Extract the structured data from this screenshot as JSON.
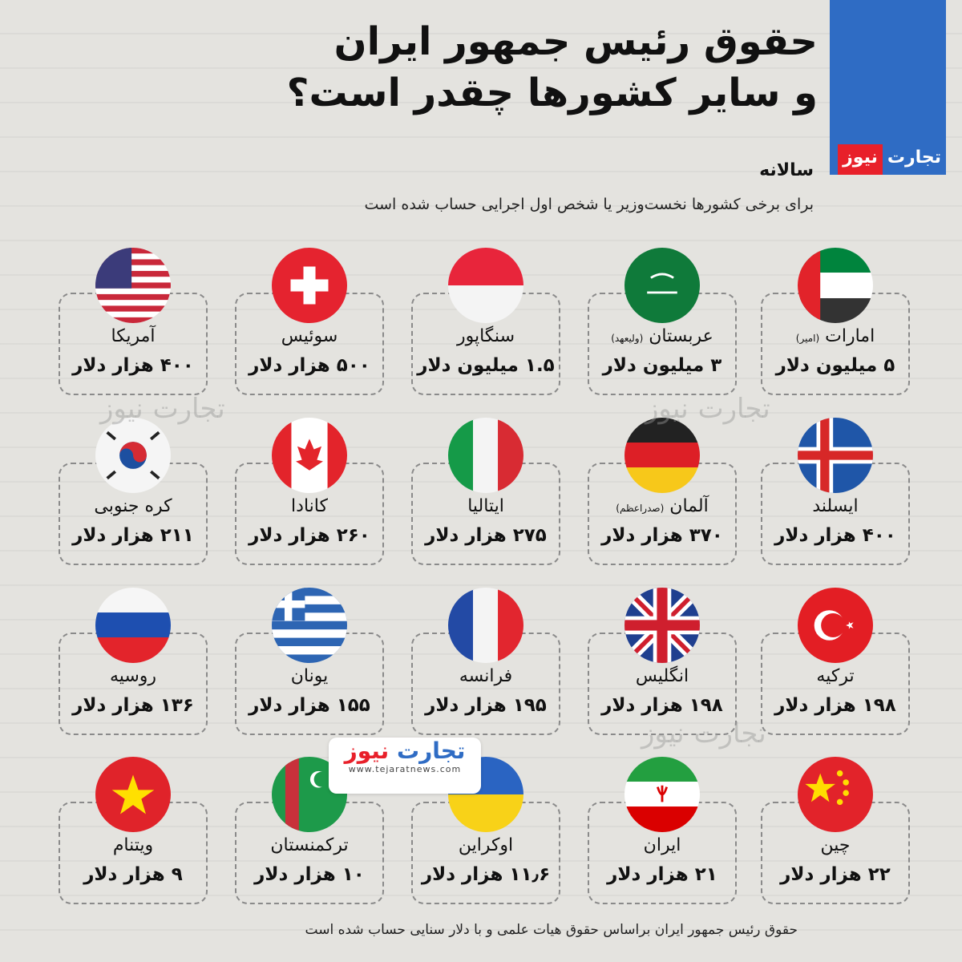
{
  "brand": {
    "logo_part1": "تجارت",
    "logo_part2": "نیوز",
    "website": "www.tejaratnews.com",
    "blue": "#2f6cc4",
    "red": "#e8202a"
  },
  "header": {
    "title_line1": "حقوق رئیس جمهور ایران",
    "title_line2": "و سایر کشورها چقدر است؟",
    "annual": "سالانه",
    "subtitle": "برای برخی کشورها نخست‌وزیر یا شخص اول اجرایی حساب شده است"
  },
  "countries": [
    {
      "name": "امارات",
      "note": "(امیر)",
      "value": "۵ میلیون دلار",
      "flag": "uae-flag-icon"
    },
    {
      "name": "عربستان",
      "note": "(ولیعهد)",
      "value": "۳ میلیون دلار",
      "flag": "saudi-flag-icon"
    },
    {
      "name": "سنگاپور",
      "note": "",
      "value": "۱.۵ میلیون دلار",
      "flag": "singapore-flag-icon"
    },
    {
      "name": "سوئیس",
      "note": "",
      "value": "۵۰۰ هزار دلار",
      "flag": "switzerland-flag-icon"
    },
    {
      "name": "آمریکا",
      "note": "",
      "value": "۴۰۰ هزار دلار",
      "flag": "usa-flag-icon"
    },
    {
      "name": "ایسلند",
      "note": "",
      "value": "۴۰۰ هزار دلار",
      "flag": "iceland-flag-icon"
    },
    {
      "name": "آلمان",
      "note": "(صدراعظم)",
      "value": "۳۷۰ هزار دلار",
      "flag": "germany-flag-icon"
    },
    {
      "name": "ایتالیا",
      "note": "",
      "value": "۲۷۵ هزار دلار",
      "flag": "italy-flag-icon"
    },
    {
      "name": "کانادا",
      "note": "",
      "value": "۲۶۰ هزار دلار",
      "flag": "canada-flag-icon"
    },
    {
      "name": "کره جنوبی",
      "note": "",
      "value": "۲۱۱ هزار دلار",
      "flag": "south-korea-flag-icon"
    },
    {
      "name": "ترکیه",
      "note": "",
      "value": "۱۹۸ هزار دلار",
      "flag": "turkey-flag-icon"
    },
    {
      "name": "انگلیس",
      "note": "",
      "value": "۱۹۸ هزار دلار",
      "flag": "uk-flag-icon"
    },
    {
      "name": "فرانسه",
      "note": "",
      "value": "۱۹۵ هزار دلار",
      "flag": "france-flag-icon"
    },
    {
      "name": "یونان",
      "note": "",
      "value": "۱۵۵ هزار دلار",
      "flag": "greece-flag-icon"
    },
    {
      "name": "روسیه",
      "note": "",
      "value": "۱۳۶ هزار دلار",
      "flag": "russia-flag-icon"
    },
    {
      "name": "چین",
      "note": "",
      "value": "۲۲ هزار دلار",
      "flag": "china-flag-icon"
    },
    {
      "name": "ایران",
      "note": "",
      "value": "۲۱ هزار دلار",
      "flag": "iran-flag-icon"
    },
    {
      "name": "اوکراین",
      "note": "",
      "value": "۱۱٫۶ هزار دلار",
      "flag": "ukraine-flag-icon"
    },
    {
      "name": "ترکمنستان",
      "note": "",
      "value": "۱۰ هزار دلار",
      "flag": "turkmenistan-flag-icon"
    },
    {
      "name": "ویتنام",
      "note": "",
      "value": "۹ هزار دلار",
      "flag": "vietnam-flag-icon"
    }
  ],
  "footer": "حقوق رئیس جمهور ایران براساس حقوق هیات علمی و با دلار سنایی حساب شده است"
}
